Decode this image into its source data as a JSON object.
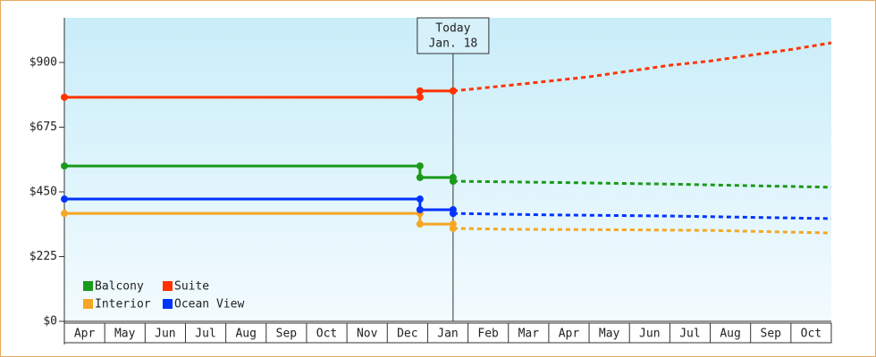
{
  "chart_data": {
    "type": "line",
    "categories": [
      "Apr",
      "May",
      "Jun",
      "Jul",
      "Aug",
      "Sep",
      "Oct",
      "Nov",
      "Dec",
      "Jan",
      "Feb",
      "Mar",
      "Apr",
      "May",
      "Jun",
      "Jul",
      "Aug",
      "Sep",
      "Oct"
    ],
    "xlim": [
      0,
      19
    ],
    "ylim": [
      0,
      1055
    ],
    "yticks": [
      {
        "value": 0,
        "label": "$0"
      },
      {
        "value": 225,
        "label": "$225"
      },
      {
        "value": 450,
        "label": "$450"
      },
      {
        "value": 675,
        "label": "$675"
      },
      {
        "value": 900,
        "label": "$900"
      }
    ],
    "today": {
      "x": 9.63,
      "label": [
        "Today",
        "Jan. 18"
      ]
    },
    "legend": "bottom-left",
    "series": [
      {
        "name": "Balcony",
        "color": "#1a9a1a",
        "x": [
          0,
          8.81,
          8.81,
          9.63
        ],
        "values": [
          540,
          540,
          500,
          500
        ],
        "forecast_x": [
          9.63,
          12,
          15,
          19
        ],
        "forecast": [
          487,
          483,
          477,
          466
        ]
      },
      {
        "name": "Suite",
        "color": "#ff3300",
        "x": [
          0,
          8.81,
          8.81,
          9.63
        ],
        "values": [
          779,
          779,
          801,
          801
        ],
        "forecast_x": [
          9.63,
          11,
          12,
          13,
          14,
          15,
          16,
          17,
          18,
          19
        ],
        "forecast": [
          801,
          820,
          835,
          850,
          870,
          890,
          905,
          925,
          945,
          968
        ]
      },
      {
        "name": "Interior",
        "color": "#f5a623",
        "x": [
          0,
          8.81,
          8.81,
          9.63
        ],
        "values": [
          375,
          375,
          338,
          338
        ],
        "forecast_x": [
          9.63,
          11,
          14,
          16,
          19
        ],
        "forecast": [
          323,
          320,
          318,
          316,
          307
        ]
      },
      {
        "name": "Ocean View",
        "color": "#0033ff",
        "x": [
          0,
          8.81,
          8.81,
          9.63
        ],
        "values": [
          425,
          425,
          388,
          388
        ],
        "forecast_x": [
          9.63,
          12,
          15,
          19
        ],
        "forecast": [
          375,
          370,
          366,
          357
        ]
      }
    ]
  }
}
